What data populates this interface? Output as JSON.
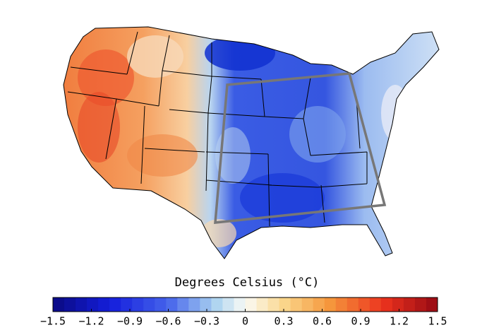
{
  "colorbar": {
    "label": "Degrees Celsius (°C)",
    "range": [
      -1.5,
      1.5
    ],
    "ticks": [
      {
        "value": -1.5,
        "label": "−1.5"
      },
      {
        "value": -1.2,
        "label": "−1.2"
      },
      {
        "value": -0.9,
        "label": "−0.9"
      },
      {
        "value": -0.6,
        "label": "−0.6"
      },
      {
        "value": -0.3,
        "label": "−0.3"
      },
      0,
      0.3,
      0.6,
      0.9,
      1.2,
      1.5
    ]
  }
}
